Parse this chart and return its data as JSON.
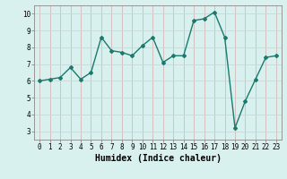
{
  "x": [
    0,
    1,
    2,
    3,
    4,
    5,
    6,
    7,
    8,
    9,
    10,
    11,
    12,
    13,
    14,
    15,
    16,
    17,
    18,
    19,
    20,
    21,
    22,
    23
  ],
  "y": [
    6.0,
    6.1,
    6.2,
    6.8,
    6.1,
    6.5,
    8.6,
    7.8,
    7.7,
    7.5,
    8.1,
    8.6,
    7.1,
    7.5,
    7.5,
    9.6,
    9.7,
    10.1,
    8.6,
    3.2,
    4.8,
    6.1,
    7.4,
    7.5
  ],
  "xlabel": "Humidex (Indice chaleur)",
  "line_color": "#1a7a6e",
  "bg_color": "#d8f0ee",
  "grid_color": "#b8dbd8",
  "grid_color_minor": "#e8c8c8",
  "ylim": [
    2.5,
    10.5
  ],
  "xlim": [
    -0.5,
    23.5
  ],
  "yticks": [
    3,
    4,
    5,
    6,
    7,
    8,
    9,
    10
  ],
  "xticks": [
    0,
    1,
    2,
    3,
    4,
    5,
    6,
    7,
    8,
    9,
    10,
    11,
    12,
    13,
    14,
    15,
    16,
    17,
    18,
    19,
    20,
    21,
    22,
    23
  ],
  "tick_fontsize": 5.5,
  "label_fontsize": 7
}
